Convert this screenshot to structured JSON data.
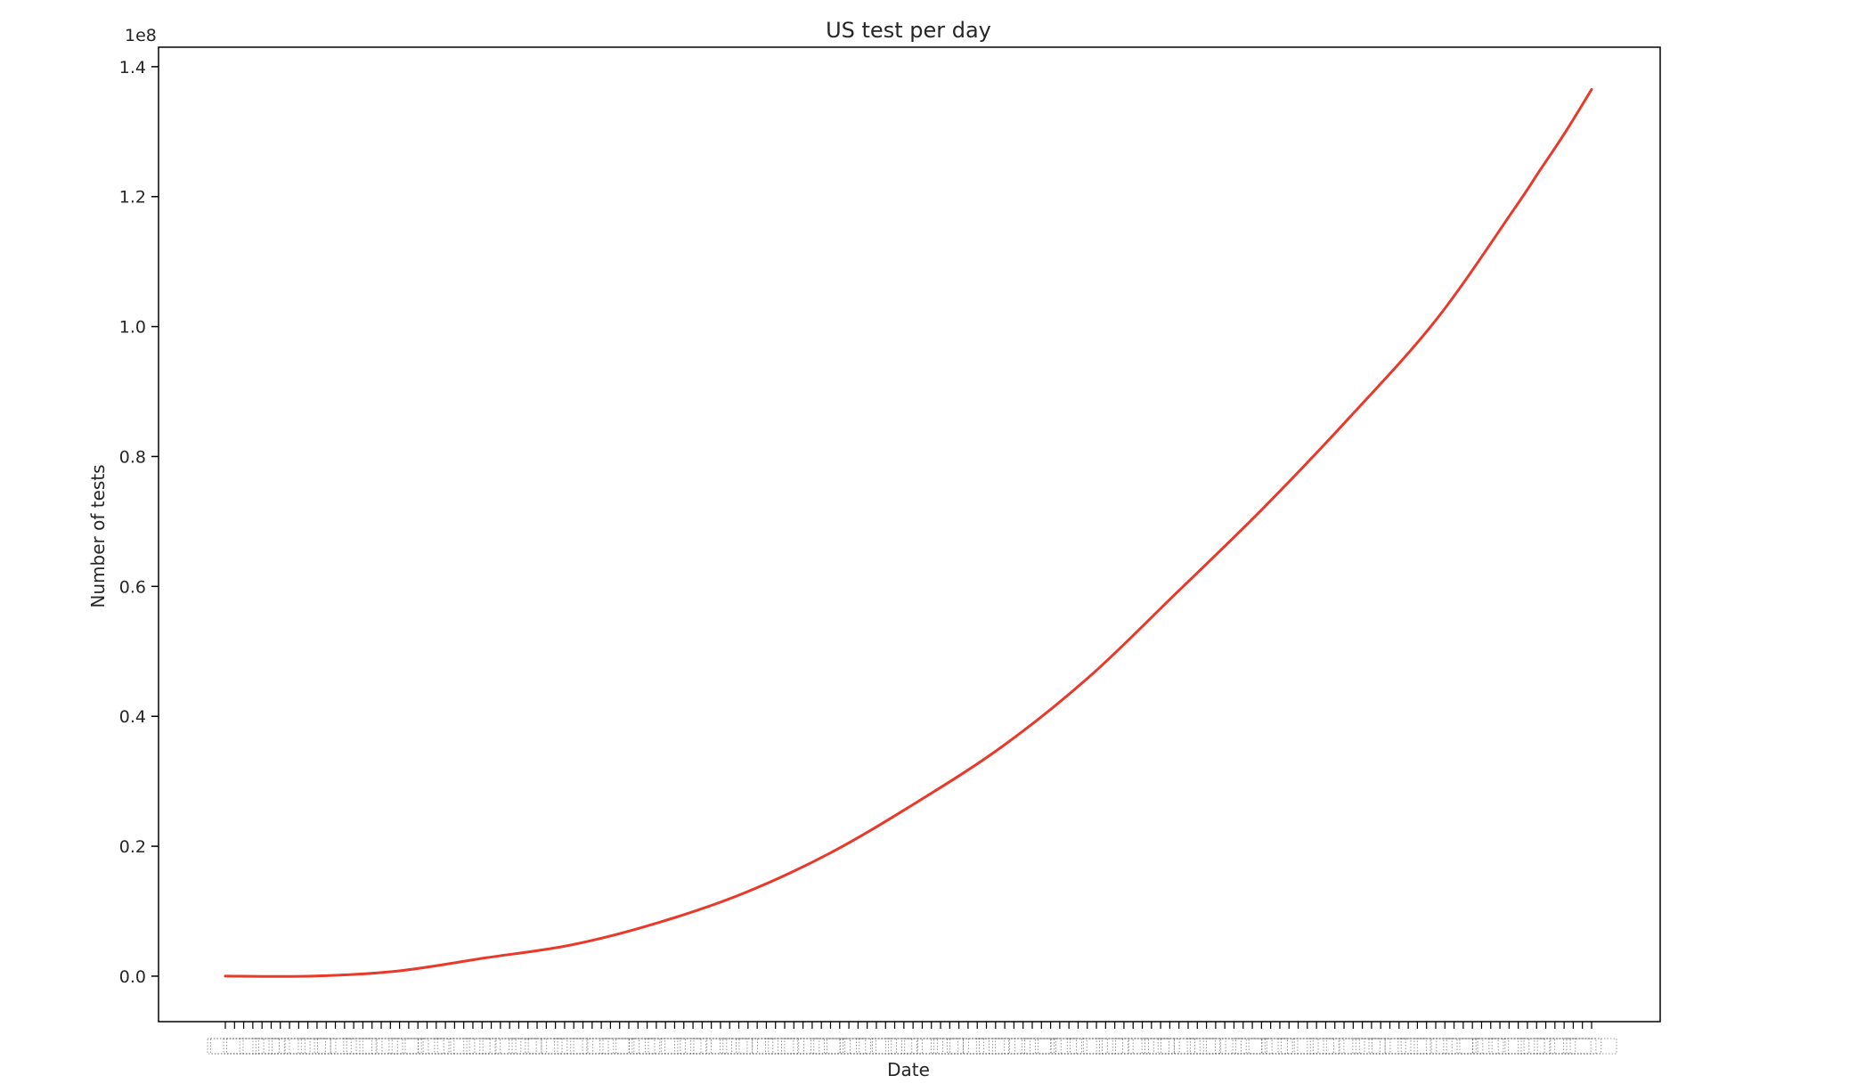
{
  "chart_data": {
    "type": "line",
    "title": "US test per day",
    "xlabel": "Date",
    "ylabel": "Number of tests",
    "y_offset_label": "1e8",
    "y_tick_labels": [
      "0.0",
      "0.2",
      "0.4",
      "0.6",
      "0.8",
      "1.0",
      "1.2",
      "1.4"
    ],
    "y_ticks": [
      0,
      0.2,
      0.4,
      0.6,
      0.8,
      1.0,
      1.2,
      1.4
    ],
    "ylim": [
      -0.07,
      1.43
    ],
    "x_tick_count": 150,
    "x_tick_labels_legible": false,
    "grid": false,
    "legend": "none",
    "series": [
      {
        "color": "#e8392a",
        "x": [
          0,
          10,
          20,
          30,
          40,
          50,
          60,
          70,
          80,
          90,
          100,
          110,
          120,
          130,
          140,
          149
        ],
        "values": [
          0.0,
          0.0,
          0.008,
          0.028,
          0.048,
          0.082,
          0.128,
          0.19,
          0.268,
          0.355,
          0.462,
          0.59,
          0.72,
          0.86,
          1.01,
          1.18
        ]
      }
    ],
    "series_tail": {
      "x": [
        149,
        152,
        155,
        158
      ],
      "values": [
        1.18,
        1.24,
        1.3,
        1.365
      ]
    }
  }
}
